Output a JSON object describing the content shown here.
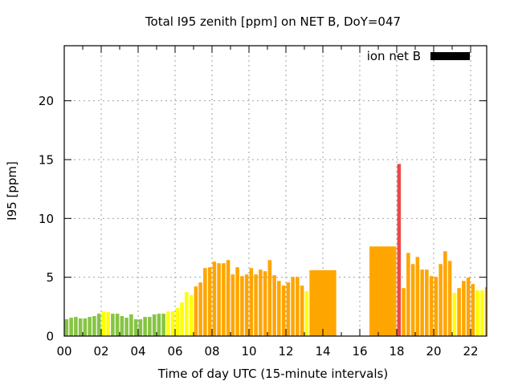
{
  "chart_data": {
    "type": "bar",
    "title": "Total I95 zenith [ppm] on NET B, DoY=047",
    "xlabel": "Time of day UTC (15-minute intervals)",
    "ylabel": "I95 [ppm]",
    "xlim": [
      0,
      22.87
    ],
    "ylim": [
      0,
      24.68
    ],
    "grid": true,
    "legend": {
      "position": "top-right",
      "entries": [
        {
          "label": "ion net B",
          "color": "#000000"
        }
      ]
    },
    "x_ticks": [
      {
        "value": 0,
        "label": "00"
      },
      {
        "value": 2,
        "label": "02"
      },
      {
        "value": 4,
        "label": "04"
      },
      {
        "value": 6,
        "label": "06"
      },
      {
        "value": 8,
        "label": "08"
      },
      {
        "value": 10,
        "label": "10"
      },
      {
        "value": 12,
        "label": "12"
      },
      {
        "value": 14,
        "label": "14"
      },
      {
        "value": 16,
        "label": "16"
      },
      {
        "value": 18,
        "label": "18"
      },
      {
        "value": 20,
        "label": "20"
      },
      {
        "value": 22,
        "label": "22"
      }
    ],
    "y_ticks": [
      {
        "value": 0,
        "label": "0"
      },
      {
        "value": 5,
        "label": "5"
      },
      {
        "value": 10,
        "label": "10"
      },
      {
        "value": 15,
        "label": "15"
      },
      {
        "value": 20,
        "label": "20"
      }
    ],
    "colors": {
      "green": "#86C443",
      "yellow": "#FFFF00",
      "orange": "#FFA500",
      "red": "#EF4747"
    },
    "bars": [
      {
        "start": 0.0,
        "end": 0.25,
        "value": 1.43,
        "level": "green"
      },
      {
        "start": 0.25,
        "end": 0.5,
        "value": 1.56,
        "level": "green"
      },
      {
        "start": 0.5,
        "end": 0.75,
        "value": 1.63,
        "level": "green"
      },
      {
        "start": 0.75,
        "end": 1.0,
        "value": 1.5,
        "level": "green"
      },
      {
        "start": 1.0,
        "end": 1.25,
        "value": 1.5,
        "level": "green"
      },
      {
        "start": 1.25,
        "end": 1.5,
        "value": 1.63,
        "level": "green"
      },
      {
        "start": 1.5,
        "end": 1.75,
        "value": 1.7,
        "level": "green"
      },
      {
        "start": 1.75,
        "end": 2.0,
        "value": 1.9,
        "level": "green"
      },
      {
        "start": 2.0,
        "end": 2.25,
        "value": 2.1,
        "level": "yellow"
      },
      {
        "start": 2.25,
        "end": 2.5,
        "value": 2.04,
        "level": "yellow"
      },
      {
        "start": 2.5,
        "end": 2.75,
        "value": 1.9,
        "level": "green"
      },
      {
        "start": 2.75,
        "end": 3.0,
        "value": 1.9,
        "level": "green"
      },
      {
        "start": 3.0,
        "end": 3.25,
        "value": 1.7,
        "level": "green"
      },
      {
        "start": 3.25,
        "end": 3.5,
        "value": 1.56,
        "level": "green"
      },
      {
        "start": 3.5,
        "end": 3.75,
        "value": 1.84,
        "level": "green"
      },
      {
        "start": 3.75,
        "end": 4.0,
        "value": 1.43,
        "level": "green"
      },
      {
        "start": 4.0,
        "end": 4.25,
        "value": 1.43,
        "level": "green"
      },
      {
        "start": 4.25,
        "end": 4.5,
        "value": 1.63,
        "level": "green"
      },
      {
        "start": 4.5,
        "end": 4.75,
        "value": 1.63,
        "level": "green"
      },
      {
        "start": 4.75,
        "end": 5.0,
        "value": 1.84,
        "level": "green"
      },
      {
        "start": 5.0,
        "end": 5.25,
        "value": 1.9,
        "level": "green"
      },
      {
        "start": 5.25,
        "end": 5.5,
        "value": 1.9,
        "level": "green"
      },
      {
        "start": 5.5,
        "end": 5.75,
        "value": 2.1,
        "level": "yellow"
      },
      {
        "start": 5.75,
        "end": 6.0,
        "value": 2.1,
        "level": "yellow"
      },
      {
        "start": 6.0,
        "end": 6.25,
        "value": 2.38,
        "level": "yellow"
      },
      {
        "start": 6.25,
        "end": 6.5,
        "value": 2.86,
        "level": "yellow"
      },
      {
        "start": 6.5,
        "end": 6.75,
        "value": 3.74,
        "level": "yellow"
      },
      {
        "start": 6.75,
        "end": 7.0,
        "value": 3.47,
        "level": "yellow"
      },
      {
        "start": 7.0,
        "end": 7.25,
        "value": 4.22,
        "level": "orange"
      },
      {
        "start": 7.25,
        "end": 7.5,
        "value": 4.56,
        "level": "orange"
      },
      {
        "start": 7.5,
        "end": 7.75,
        "value": 5.78,
        "level": "orange"
      },
      {
        "start": 7.75,
        "end": 8.0,
        "value": 5.85,
        "level": "orange"
      },
      {
        "start": 8.0,
        "end": 8.25,
        "value": 6.33,
        "level": "orange"
      },
      {
        "start": 8.25,
        "end": 8.5,
        "value": 6.19,
        "level": "orange"
      },
      {
        "start": 8.5,
        "end": 8.75,
        "value": 6.19,
        "level": "orange"
      },
      {
        "start": 8.75,
        "end": 9.0,
        "value": 6.46,
        "level": "orange"
      },
      {
        "start": 9.0,
        "end": 9.25,
        "value": 5.24,
        "level": "orange"
      },
      {
        "start": 9.25,
        "end": 9.5,
        "value": 5.85,
        "level": "orange"
      },
      {
        "start": 9.5,
        "end": 9.75,
        "value": 5.1,
        "level": "orange"
      },
      {
        "start": 9.75,
        "end": 10.0,
        "value": 5.24,
        "level": "orange"
      },
      {
        "start": 10.0,
        "end": 10.25,
        "value": 5.78,
        "level": "orange"
      },
      {
        "start": 10.25,
        "end": 10.5,
        "value": 5.24,
        "level": "orange"
      },
      {
        "start": 10.5,
        "end": 10.75,
        "value": 5.65,
        "level": "orange"
      },
      {
        "start": 10.75,
        "end": 11.0,
        "value": 5.51,
        "level": "orange"
      },
      {
        "start": 11.0,
        "end": 11.25,
        "value": 6.46,
        "level": "orange"
      },
      {
        "start": 11.25,
        "end": 11.5,
        "value": 5.17,
        "level": "orange"
      },
      {
        "start": 11.5,
        "end": 11.75,
        "value": 4.69,
        "level": "orange"
      },
      {
        "start": 11.75,
        "end": 12.0,
        "value": 4.29,
        "level": "orange"
      },
      {
        "start": 12.0,
        "end": 12.25,
        "value": 4.56,
        "level": "orange"
      },
      {
        "start": 12.25,
        "end": 12.5,
        "value": 5.03,
        "level": "orange"
      },
      {
        "start": 12.5,
        "end": 12.75,
        "value": 5.03,
        "level": "orange"
      },
      {
        "start": 12.75,
        "end": 13.0,
        "value": 4.29,
        "level": "orange"
      },
      {
        "start": 13.0,
        "end": 13.25,
        "value": 3.81,
        "level": "yellow"
      },
      {
        "start": 13.25,
        "end": 14.75,
        "value": 5.6,
        "level": "orange"
      },
      {
        "start": 16.5,
        "end": 18.0,
        "value": 7.62,
        "level": "orange"
      },
      {
        "start": 18.0,
        "end": 18.25,
        "value": 14.63,
        "level": "red"
      },
      {
        "start": 18.25,
        "end": 18.5,
        "value": 4.08,
        "level": "orange"
      },
      {
        "start": 18.5,
        "end": 18.75,
        "value": 7.07,
        "level": "orange"
      },
      {
        "start": 18.75,
        "end": 19.0,
        "value": 6.12,
        "level": "orange"
      },
      {
        "start": 19.0,
        "end": 19.25,
        "value": 6.73,
        "level": "orange"
      },
      {
        "start": 19.25,
        "end": 19.5,
        "value": 5.65,
        "level": "orange"
      },
      {
        "start": 19.5,
        "end": 19.75,
        "value": 5.65,
        "level": "orange"
      },
      {
        "start": 19.75,
        "end": 20.0,
        "value": 5.1,
        "level": "orange"
      },
      {
        "start": 20.0,
        "end": 20.25,
        "value": 5.03,
        "level": "orange"
      },
      {
        "start": 20.25,
        "end": 20.5,
        "value": 6.12,
        "level": "orange"
      },
      {
        "start": 20.5,
        "end": 20.75,
        "value": 7.21,
        "level": "orange"
      },
      {
        "start": 20.75,
        "end": 21.0,
        "value": 6.39,
        "level": "orange"
      },
      {
        "start": 21.0,
        "end": 21.25,
        "value": 3.67,
        "level": "yellow"
      },
      {
        "start": 21.25,
        "end": 21.5,
        "value": 4.08,
        "level": "orange"
      },
      {
        "start": 21.5,
        "end": 21.75,
        "value": 4.69,
        "level": "orange"
      },
      {
        "start": 21.75,
        "end": 22.0,
        "value": 4.97,
        "level": "orange"
      },
      {
        "start": 22.0,
        "end": 22.25,
        "value": 4.42,
        "level": "orange"
      },
      {
        "start": 22.25,
        "end": 22.5,
        "value": 3.88,
        "level": "yellow"
      },
      {
        "start": 22.5,
        "end": 22.75,
        "value": 3.88,
        "level": "yellow"
      },
      {
        "start": 22.75,
        "end": 23.0,
        "value": 4.15,
        "level": "orange"
      }
    ]
  }
}
